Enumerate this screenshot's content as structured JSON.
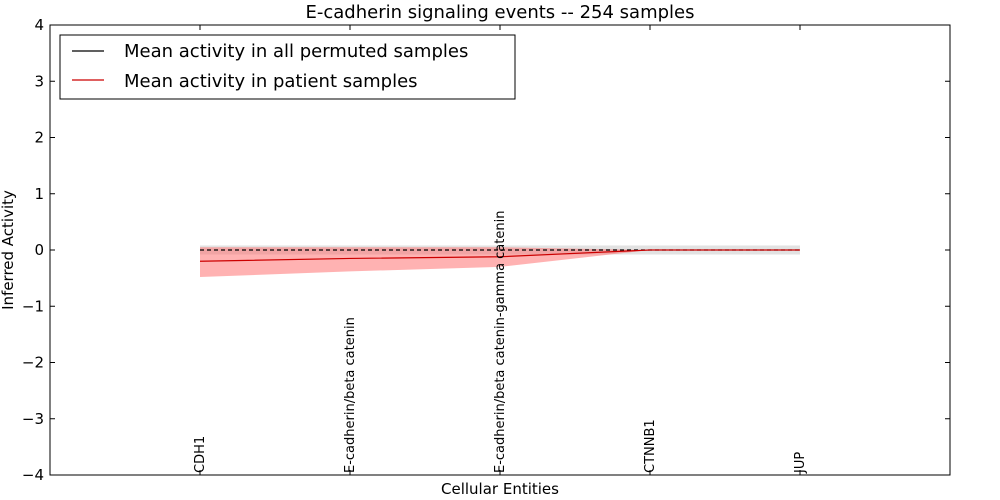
{
  "chart_data": {
    "type": "line",
    "title": "E-cadherin signaling events -- 254 samples",
    "xlabel": "Cellular Entities",
    "ylabel": "Inferred Activity",
    "ylim": [
      -4,
      4
    ],
    "yticks": [
      -4,
      -3,
      -2,
      -1,
      0,
      1,
      2,
      3,
      4
    ],
    "ytick_labels": [
      "−4",
      "−3",
      "−2",
      "−1",
      "0",
      "1",
      "2",
      "3",
      "4"
    ],
    "categories": [
      "CDH1",
      "E-cadherin/beta catenin",
      "E-cadherin/beta catenin-gamma catenin",
      "CTNNB1",
      "JUP"
    ],
    "grid": false,
    "legend_position": "top-left",
    "series": [
      {
        "name": "Mean activity in all permuted samples",
        "color": "#000000",
        "style": "dashed",
        "values": [
          0.0,
          0.0,
          0.0,
          0.0,
          0.0
        ],
        "band_lower": [
          -0.08,
          -0.08,
          -0.08,
          -0.08,
          -0.08
        ],
        "band_upper": [
          0.08,
          0.08,
          0.08,
          0.08,
          0.08
        ],
        "band_color": "#bfbfbf"
      },
      {
        "name": "Mean activity in patient samples",
        "color": "#cc0000",
        "style": "solid",
        "values": [
          -0.2,
          -0.15,
          -0.12,
          0.0,
          0.0
        ],
        "band_lower": [
          -0.48,
          -0.38,
          -0.3,
          0.0,
          0.0
        ],
        "band_upper": [
          0.05,
          0.05,
          0.05,
          0.0,
          0.0
        ],
        "band_color": "#ff6666"
      }
    ]
  }
}
